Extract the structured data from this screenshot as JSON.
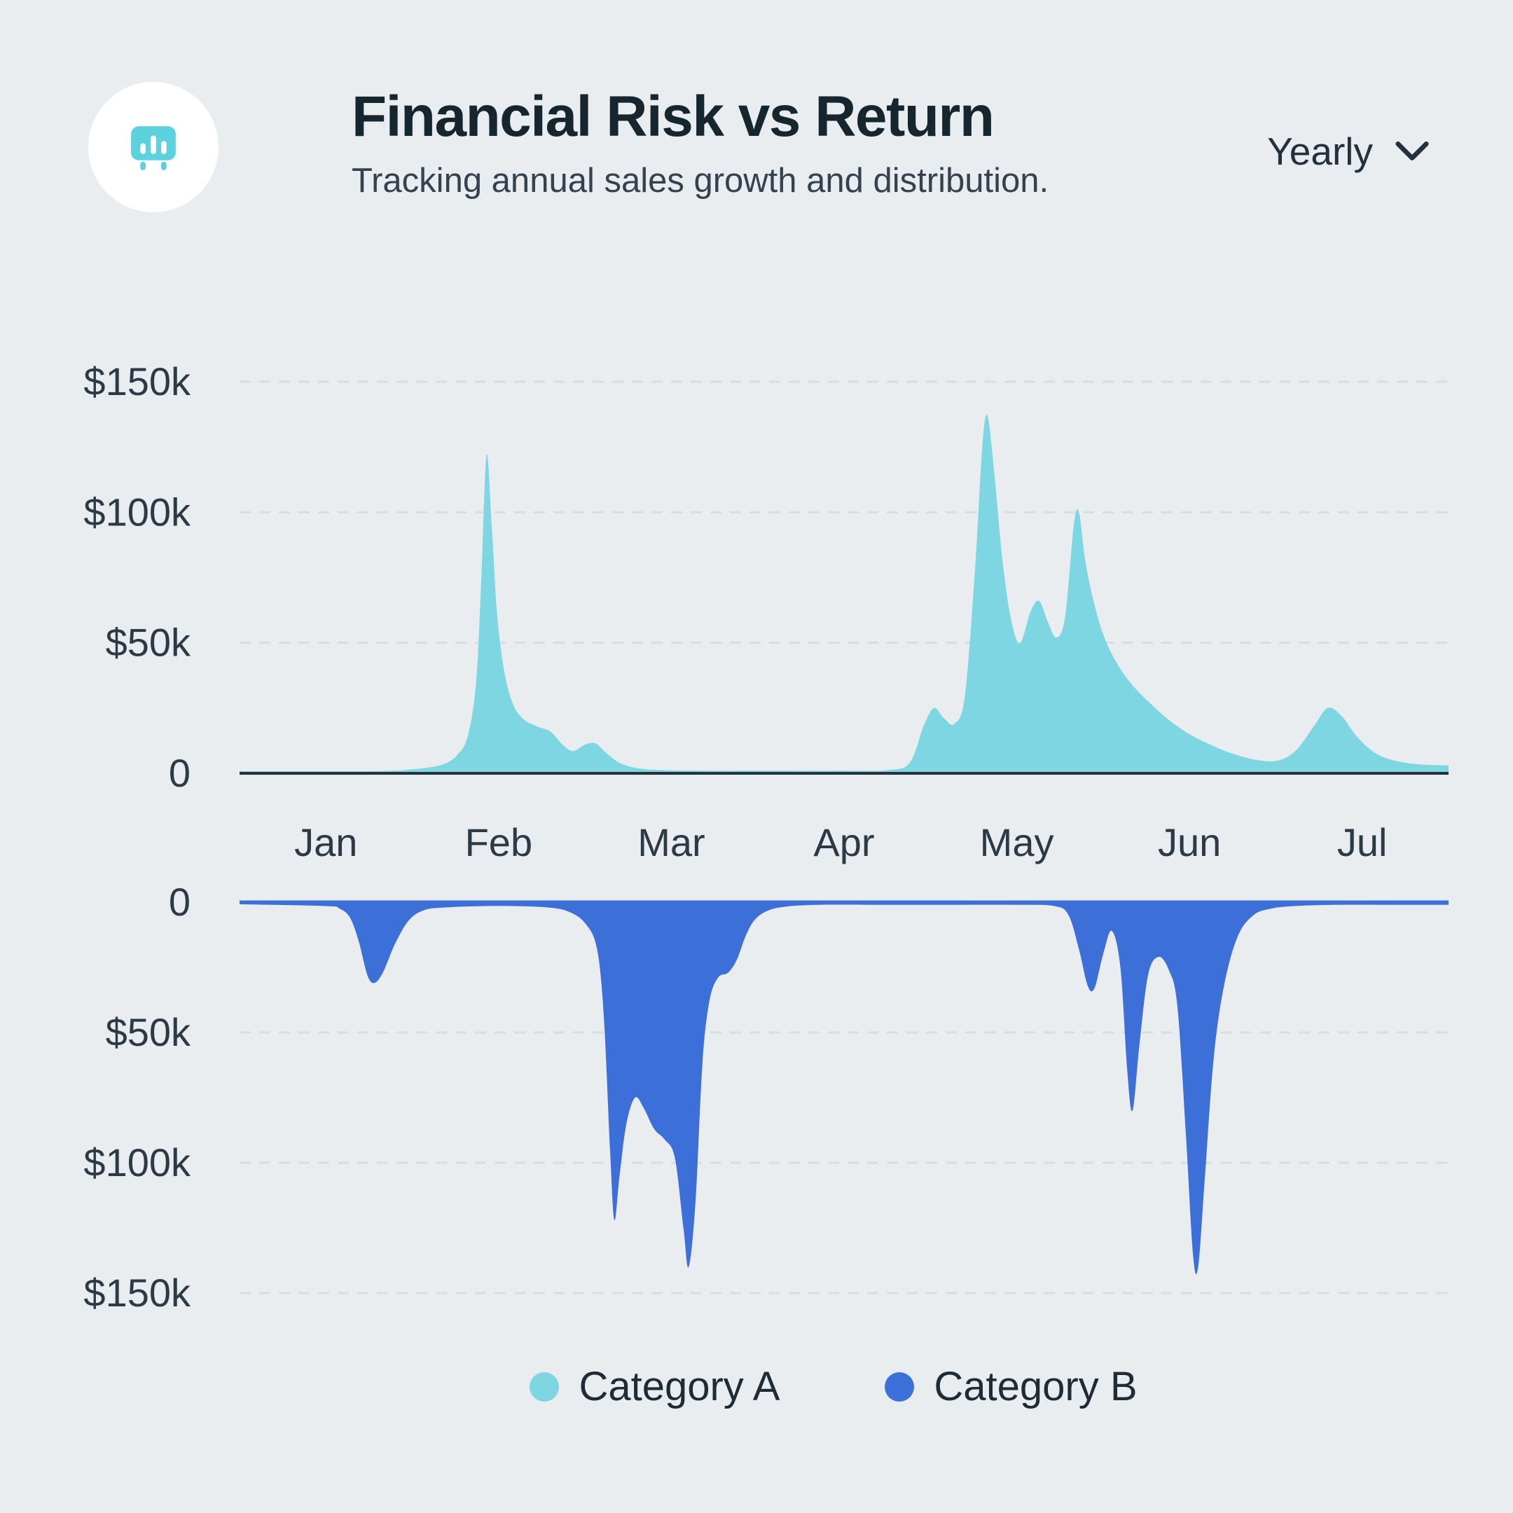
{
  "header": {
    "title": "Financial Risk vs Return",
    "subtitle": "Tracking annual sales growth and distribution.",
    "period_selector": {
      "value": "Yearly",
      "icon": "chevron-down-icon"
    },
    "logo_icon": "bar-chart-easel-icon"
  },
  "colors": {
    "background": "#e9edf0",
    "category_a": "#7dd6e2",
    "category_b": "#3c70d8",
    "icon_accent": "#5cd2de",
    "axis_line": "#24323b",
    "grid_line": "#d7dde2",
    "text_dark": "#15262e"
  },
  "legend": {
    "position": "bottom-center"
  },
  "chart_data": {
    "type": "area",
    "title": "Financial Risk vs Return",
    "subtitle": "Tracking annual sales growth and distribution.",
    "x_tick_labels": [
      "Jan",
      "Feb",
      "Mar",
      "Apr",
      "May",
      "Jun",
      "Jul"
    ],
    "x_domain": [
      -0.5,
      6.5
    ],
    "y_unit": "thousand dollars ($k)",
    "y_axis_top": {
      "labels": [
        "$150k",
        "$100k",
        "$50k",
        "0"
      ],
      "values": [
        150,
        100,
        50,
        0
      ]
    },
    "y_axis_bottom": {
      "labels": [
        "0",
        "$50k",
        "$100k",
        "$150k"
      ],
      "values": [
        0,
        50,
        100,
        150
      ]
    },
    "ylim_top": [
      0,
      150
    ],
    "ylim_bottom": [
      0,
      150
    ],
    "grid": "dashed horizontal lines at 50k steps",
    "legend_position": "bottom-center",
    "series": [
      {
        "name": "Category A",
        "color": "#7dd6e2",
        "direction": "up",
        "points": [
          [
            -0.5,
            0.8
          ],
          [
            0,
            0.8
          ],
          [
            0.35,
            0.9
          ],
          [
            0.5,
            1.5
          ],
          [
            0.62,
            2.5
          ],
          [
            0.7,
            4
          ],
          [
            0.76,
            7
          ],
          [
            0.82,
            14
          ],
          [
            0.87,
            35
          ],
          [
            0.9,
            75
          ],
          [
            0.93,
            122
          ],
          [
            0.96,
            95
          ],
          [
            0.99,
            62
          ],
          [
            1.03,
            40
          ],
          [
            1.08,
            27
          ],
          [
            1.14,
            21
          ],
          [
            1.22,
            18
          ],
          [
            1.3,
            16
          ],
          [
            1.37,
            11
          ],
          [
            1.43,
            8.5
          ],
          [
            1.5,
            11
          ],
          [
            1.56,
            11.5
          ],
          [
            1.62,
            8
          ],
          [
            1.7,
            4
          ],
          [
            1.8,
            2
          ],
          [
            1.95,
            1.2
          ],
          [
            2.2,
            1
          ],
          [
            2.6,
            1
          ],
          [
            3.0,
            1
          ],
          [
            3.25,
            1.2
          ],
          [
            3.38,
            4
          ],
          [
            3.46,
            18
          ],
          [
            3.52,
            25
          ],
          [
            3.58,
            21
          ],
          [
            3.64,
            19
          ],
          [
            3.7,
            30
          ],
          [
            3.76,
            80
          ],
          [
            3.8,
            125
          ],
          [
            3.83,
            137
          ],
          [
            3.87,
            115
          ],
          [
            3.92,
            80
          ],
          [
            3.97,
            58
          ],
          [
            4.02,
            50
          ],
          [
            4.08,
            62
          ],
          [
            4.13,
            66
          ],
          [
            4.18,
            58
          ],
          [
            4.23,
            52
          ],
          [
            4.28,
            60
          ],
          [
            4.33,
            95
          ],
          [
            4.36,
            100
          ],
          [
            4.4,
            80
          ],
          [
            4.46,
            62
          ],
          [
            4.52,
            50
          ],
          [
            4.6,
            40
          ],
          [
            4.68,
            33
          ],
          [
            4.77,
            27
          ],
          [
            4.87,
            21
          ],
          [
            5.0,
            15
          ],
          [
            5.12,
            11
          ],
          [
            5.25,
            7.5
          ],
          [
            5.4,
            5
          ],
          [
            5.52,
            5
          ],
          [
            5.62,
            9
          ],
          [
            5.72,
            18
          ],
          [
            5.8,
            25
          ],
          [
            5.88,
            22
          ],
          [
            5.97,
            14
          ],
          [
            6.07,
            8
          ],
          [
            6.18,
            5
          ],
          [
            6.32,
            3.5
          ],
          [
            6.5,
            3
          ]
        ]
      },
      {
        "name": "Category B",
        "color": "#3c70d8",
        "direction": "down",
        "points": [
          [
            -0.5,
            0.8
          ],
          [
            0,
            1.5
          ],
          [
            0.08,
            2.5
          ],
          [
            0.14,
            6
          ],
          [
            0.19,
            15
          ],
          [
            0.24,
            28
          ],
          [
            0.28,
            31
          ],
          [
            0.33,
            27
          ],
          [
            0.4,
            16
          ],
          [
            0.48,
            7
          ],
          [
            0.57,
            3
          ],
          [
            0.7,
            2
          ],
          [
            0.9,
            1.5
          ],
          [
            1.1,
            1.5
          ],
          [
            1.28,
            2
          ],
          [
            1.4,
            3.5
          ],
          [
            1.5,
            8
          ],
          [
            1.57,
            18
          ],
          [
            1.61,
            45
          ],
          [
            1.645,
            95
          ],
          [
            1.67,
            122
          ],
          [
            1.7,
            105
          ],
          [
            1.74,
            85
          ],
          [
            1.79,
            75
          ],
          [
            1.84,
            79
          ],
          [
            1.9,
            87
          ],
          [
            1.96,
            91
          ],
          [
            2.02,
            98
          ],
          [
            2.07,
            125
          ],
          [
            2.1,
            140
          ],
          [
            2.14,
            115
          ],
          [
            2.18,
            62
          ],
          [
            2.22,
            38
          ],
          [
            2.27,
            29
          ],
          [
            2.33,
            27
          ],
          [
            2.38,
            22
          ],
          [
            2.43,
            13
          ],
          [
            2.48,
            7
          ],
          [
            2.55,
            3.5
          ],
          [
            2.65,
            1.8
          ],
          [
            2.85,
            1
          ],
          [
            3.2,
            1
          ],
          [
            3.6,
            1
          ],
          [
            4.0,
            1
          ],
          [
            4.22,
            1.5
          ],
          [
            4.3,
            5
          ],
          [
            4.36,
            18
          ],
          [
            4.41,
            32
          ],
          [
            4.45,
            33
          ],
          [
            4.5,
            20
          ],
          [
            4.55,
            11
          ],
          [
            4.6,
            25
          ],
          [
            4.64,
            65
          ],
          [
            4.67,
            80
          ],
          [
            4.71,
            55
          ],
          [
            4.76,
            28
          ],
          [
            4.82,
            21
          ],
          [
            4.88,
            26
          ],
          [
            4.93,
            40
          ],
          [
            4.98,
            90
          ],
          [
            5.02,
            135
          ],
          [
            5.05,
            140
          ],
          [
            5.09,
            105
          ],
          [
            5.14,
            60
          ],
          [
            5.2,
            32
          ],
          [
            5.28,
            13
          ],
          [
            5.37,
            5
          ],
          [
            5.47,
            2.5
          ],
          [
            5.6,
            1.5
          ],
          [
            5.85,
            1
          ],
          [
            6.2,
            1
          ],
          [
            6.5,
            1
          ]
        ]
      }
    ]
  }
}
